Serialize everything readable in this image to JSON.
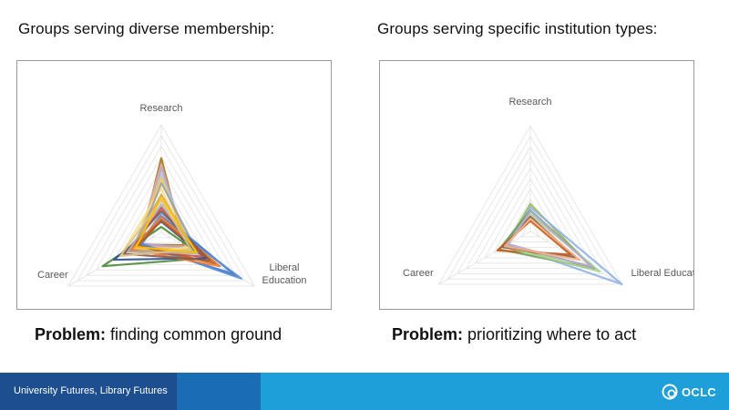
{
  "left": {
    "heading": "Groups serving diverse membership:",
    "problem_bold": "Problem:",
    "problem_text": " finding common ground"
  },
  "right": {
    "heading": "Groups serving specific institution types:",
    "problem_bold": "Problem:",
    "problem_text": " prioritizing where to act"
  },
  "footer": {
    "text": "University Futures, Library Futures",
    "logo": "OCLC",
    "colors": {
      "left": "#1d4f8f",
      "mid": "#1a6db3",
      "right": "#1f9fd9"
    }
  },
  "chart_data": [
    {
      "type": "radar",
      "title": "",
      "axes": [
        "Research",
        "Liberal Education",
        "Career"
      ],
      "axis_labels": {
        "Research": "Research",
        "Liberal Education": "Liberal\nEducation",
        "Career": "Career"
      },
      "rmax": 10,
      "grid_levels": 10,
      "grid": true,
      "legend": false,
      "series": [
        {
          "color": "#a6751a",
          "values": [
            6.9,
            2.4,
            2.3
          ]
        },
        {
          "color": "#e0a9a3",
          "values": [
            6.3,
            2.6,
            2.6
          ]
        },
        {
          "color": "#b7a3c9",
          "values": [
            6.0,
            2.9,
            2.1
          ]
        },
        {
          "color": "#a9c6e6",
          "values": [
            5.4,
            3.3,
            2.8
          ]
        },
        {
          "color": "#f2c45a",
          "values": [
            5.1,
            3.0,
            3.0
          ]
        },
        {
          "color": "#f5e08a",
          "values": [
            4.1,
            2.8,
            4.4
          ]
        },
        {
          "color": "#9e9e9e",
          "values": [
            4.6,
            4.0,
            2.6
          ]
        },
        {
          "color": "#c5a06a",
          "values": [
            3.5,
            3.6,
            3.3
          ]
        },
        {
          "color": "#6fa0d8",
          "values": [
            1.8,
            7.6,
            2.4
          ]
        },
        {
          "color": "#4472c4",
          "values": [
            1.5,
            8.1,
            2.2
          ]
        },
        {
          "color": "#5b8fd6",
          "values": [
            1.2,
            8.6,
            2.1
          ]
        },
        {
          "color": "#4e8b3a",
          "values": [
            0.5,
            4.8,
            6.3
          ]
        },
        {
          "color": "#2f4f8f",
          "values": [
            1.0,
            4.8,
            5.1
          ]
        },
        {
          "color": "#c0504d",
          "values": [
            2.3,
            4.5,
            3.5
          ]
        },
        {
          "color": "#c55a11",
          "values": [
            1.1,
            5.8,
            2.5
          ]
        },
        {
          "color": "#ed7d31",
          "values": [
            1.4,
            6.3,
            3.2
          ]
        },
        {
          "color": "#8c564b",
          "values": [
            2.0,
            5.2,
            4.0
          ]
        },
        {
          "color": "#b0b0b0",
          "values": [
            2.6,
            3.9,
            3.6
          ]
        },
        {
          "color": "#d9c38a",
          "values": [
            3.0,
            3.2,
            4.4
          ]
        },
        {
          "color": "#ffc000",
          "values": [
            3.3,
            3.8,
            2.7
          ]
        }
      ]
    },
    {
      "type": "radar",
      "title": "",
      "axes": [
        "Research",
        "Liberal Education",
        "Career"
      ],
      "axis_labels": {
        "Research": "Research",
        "Liberal Education": "Liberal Education",
        "Career": "Career"
      },
      "rmax": 10,
      "grid_levels": 10,
      "grid": true,
      "legend": false,
      "series": [
        {
          "color": "#9bbb59",
          "values": [
            2.6,
            6.6,
            2.7
          ]
        },
        {
          "color": "#8eb4e3",
          "values": [
            2.3,
            10.0,
            2.5
          ]
        },
        {
          "color": "#6e9e5c",
          "values": [
            2.0,
            7.0,
            3.4
          ]
        },
        {
          "color": "#c55a11",
          "values": [
            1.0,
            4.4,
            3.6
          ]
        },
        {
          "color": "#a9d18e",
          "values": [
            1.6,
            7.6,
            2.9
          ]
        },
        {
          "color": "#8c564b",
          "values": [
            1.4,
            4.9,
            3.0
          ]
        },
        {
          "color": "#b4a7d6",
          "values": [
            1.9,
            6.8,
            2.4
          ]
        },
        {
          "color": "#f4b183",
          "values": [
            1.2,
            5.4,
            2.8
          ]
        }
      ]
    }
  ]
}
